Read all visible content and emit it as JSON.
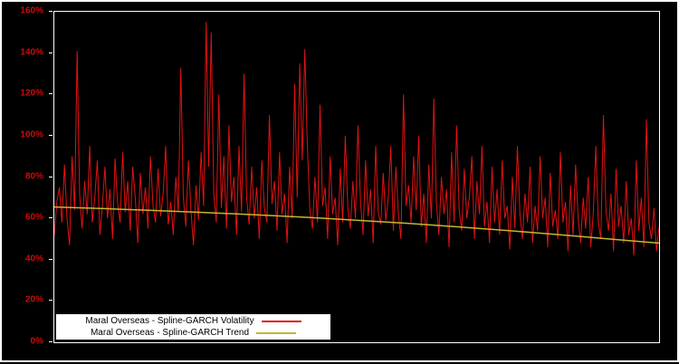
{
  "chart_data": {
    "type": "line",
    "title": "",
    "xlabel": "",
    "ylabel": "",
    "ylim": [
      0,
      160
    ],
    "y_ticks": [
      "0%",
      "20%",
      "40%",
      "60%",
      "80%",
      "100%",
      "120%",
      "140%",
      "160%"
    ],
    "grid": false,
    "background_color": "#000000",
    "plot_border_color": "#ffffff",
    "axis_label_color": "#cf0a0a",
    "legend_position": "bottom-left",
    "legend_background": "#ffffff",
    "series": [
      {
        "name": "Maral Overseas - Spline-GARCH Volatility",
        "color": "#e11212",
        "style": "line",
        "values": [
          52,
          68,
          75,
          58,
          86,
          60,
          47,
          90,
          64,
          141,
          72,
          55,
          78,
          62,
          95,
          58,
          70,
          88,
          52,
          66,
          85,
          60,
          74,
          50,
          89,
          67,
          58,
          92,
          63,
          78,
          54,
          85,
          70,
          48,
          82,
          62,
          75,
          55,
          90,
          66,
          58,
          84,
          61,
          72,
          95,
          57,
          68,
          52,
          80,
          63,
          133,
          70,
          56,
          88,
          64,
          47,
          76,
          59,
          92,
          66,
          155,
          85,
          150,
          72,
          58,
          120,
          65,
          90,
          55,
          105,
          68,
          80,
          52,
          95,
          63,
          130,
          70,
          57,
          85,
          60,
          75,
          50,
          88,
          65,
          58,
          110,
          67,
          78,
          54,
          92,
          62,
          72,
          48,
          85,
          60,
          125,
          70,
          135,
          88,
          142,
          95,
          64,
          55,
          80,
          58,
          115,
          66,
          75,
          50,
          90,
          62,
          70,
          47,
          84,
          58,
          100,
          65,
          55,
          78,
          60,
          105,
          68,
          52,
          88,
          61,
          74,
          48,
          95,
          63,
          57,
          82,
          59,
          70,
          95,
          54,
          85,
          62,
          50,
          120,
          66,
          76,
          58,
          90,
          64,
          100,
          56,
          72,
          48,
          86,
          60,
          118,
          68,
          52,
          80,
          62,
          74,
          46,
          92,
          58,
          105,
          64,
          54,
          84,
          60,
          70,
          90,
          50,
          78,
          62,
          95,
          56,
          68,
          48,
          85,
          58,
          74,
          52,
          88,
          60,
          66,
          45,
          80,
          55,
          95,
          62,
          50,
          72,
          58,
          85,
          48,
          66,
          54,
          90,
          60,
          70,
          46,
          82,
          56,
          64,
          50,
          92,
          58,
          68,
          44,
          76,
          52,
          86,
          60,
          48,
          70,
          55,
          80,
          46,
          62,
          95,
          58,
          50,
          110,
          64,
          54,
          72,
          44,
          84,
          56,
          66,
          48,
          78,
          52,
          60,
          42,
          88,
          54,
          70,
          46,
          108,
          58,
          50,
          65,
          44,
          56
        ]
      },
      {
        "name": "Maral Overseas - Spline-GARCH Trend",
        "color": "#c3b82d",
        "style": "line",
        "values": [
          65.5,
          64.7,
          63.8,
          62.8,
          61.7,
          60.5,
          59.1,
          57.6,
          55.9,
          54.1,
          52.1,
          50.0,
          48.0
        ]
      }
    ]
  }
}
